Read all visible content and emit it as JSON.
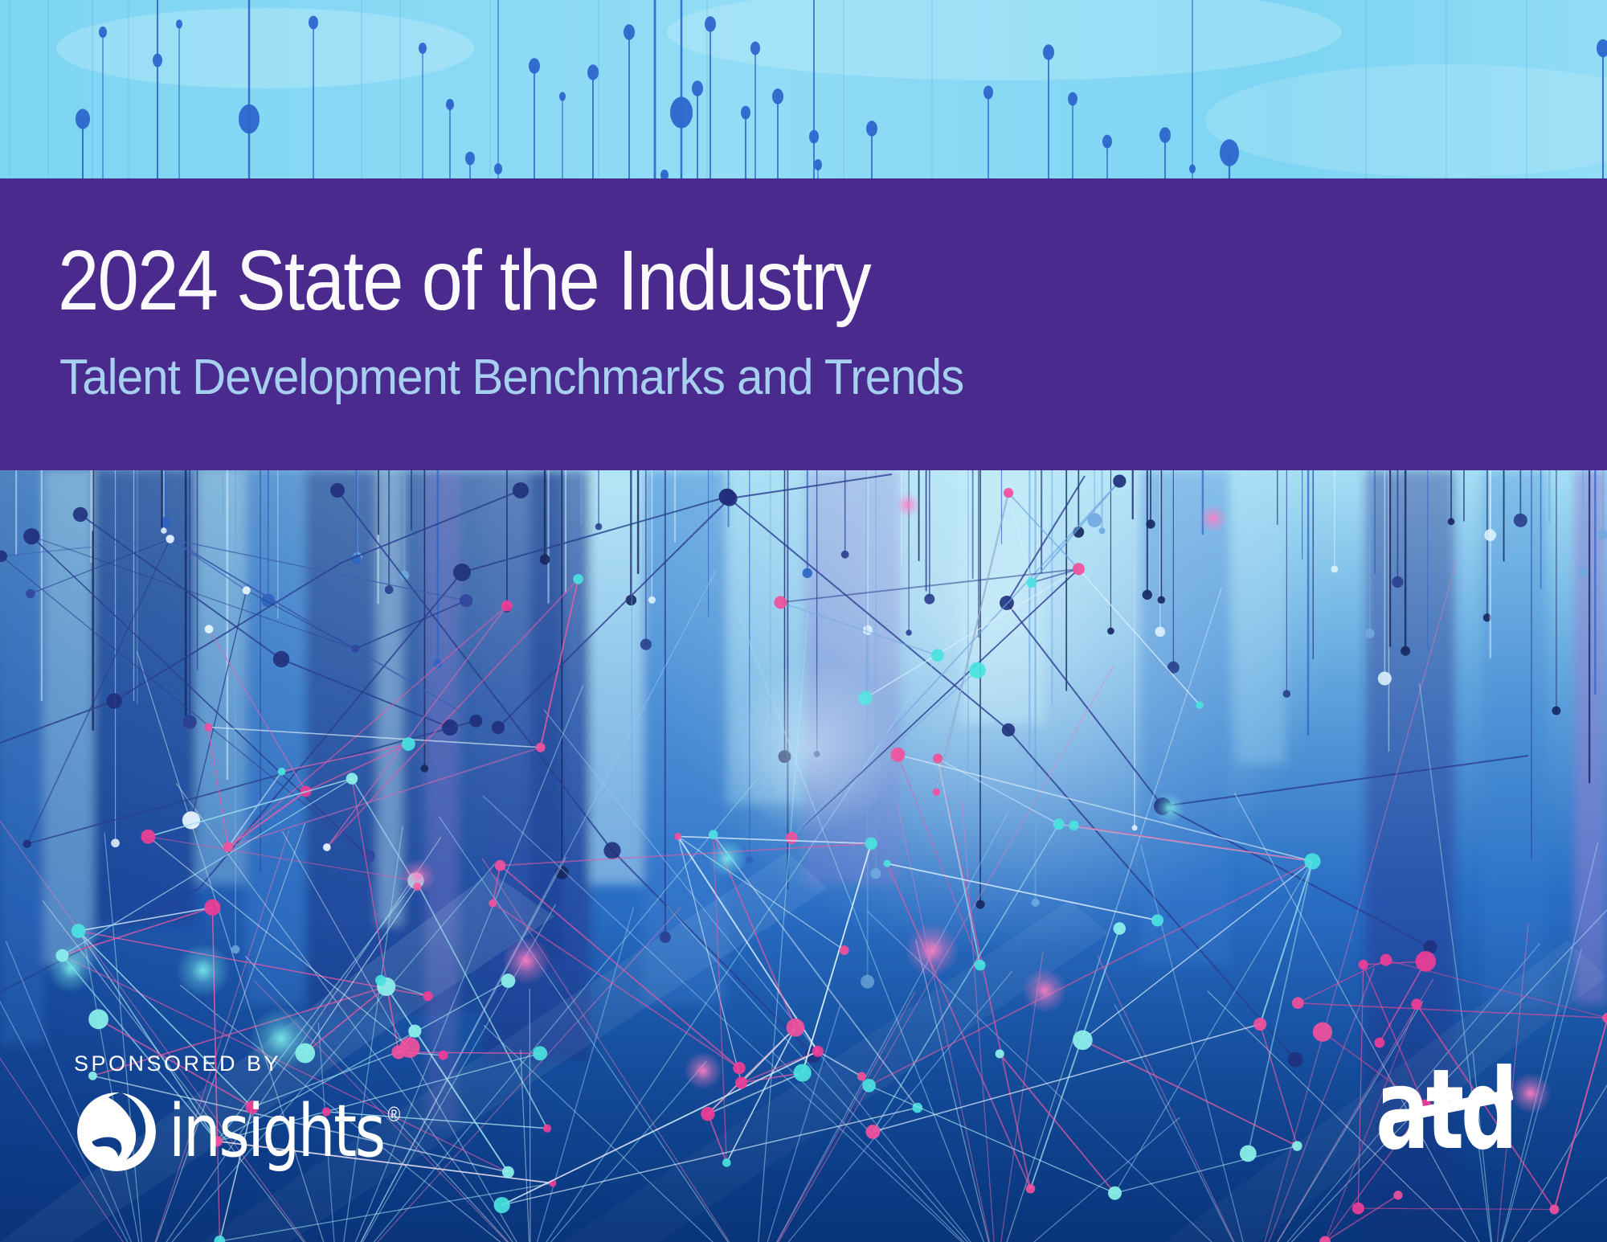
{
  "cover": {
    "title": "2024 State of the Industry",
    "subtitle": "Talent Development Benchmarks and Trends"
  },
  "sponsor": {
    "label": "SPONSORED BY",
    "name": "insights",
    "registered": "®"
  },
  "publisher": {
    "name": "atd"
  },
  "icons": {
    "insights_globe": "swirl-globe",
    "atd_slash": "diagonal-crossbar"
  },
  "art": {
    "banner_purple": "#4a2a8c",
    "title_color": "#faf9fd",
    "subtitle_color": "#a6cff0",
    "logo_white": "#ffffff",
    "top_sky": "#7dd5f3",
    "top_sky_light": "#92dcf6",
    "pin_blue": "#2e66cc",
    "sky_high": "#a5dff5",
    "sky_mid": "#5fa3dd",
    "sea_mid": "#2a6ec4",
    "sea_deep": "#0a3d8a",
    "tower_dark": "#1b3a8c",
    "tower_mid": "#3a7fd0",
    "tower_light": "#aadef4",
    "tower_pale": "#cdf0fb",
    "tower_purple": "#8f7fd0",
    "tower_navy": "#26308a",
    "node_pink": "#f1509c",
    "node_magenta": "#ee3d96",
    "node_cyan": "#4ae2df",
    "node_aqua": "#8df2ec",
    "node_navy": "#20307c",
    "node_white": "#eaf6ff",
    "line_pink": "#e85aa4",
    "line_magenta": "#d46ab4",
    "line_cyan": "#9fe0ef",
    "line_white": "#ddf1fb",
    "line_navy": "#2a3f8e",
    "line_blue": "#6fa8e0",
    "glow_pink": "#ff7ec4",
    "glow_cyan": "#7df0ee"
  }
}
